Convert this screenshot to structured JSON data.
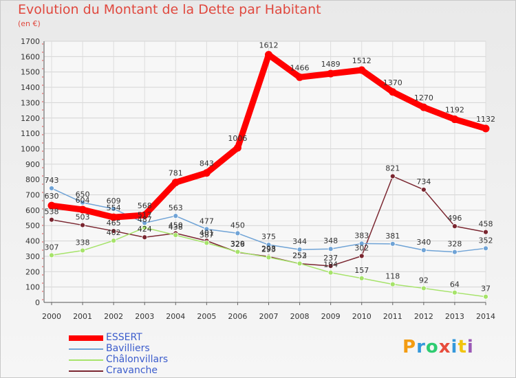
{
  "header": {
    "title": "Evolution du Montant de la Dette par Habitant",
    "subtitle": "(en €)"
  },
  "logo": {
    "text": "Proxiti",
    "colors": [
      "#f39c12",
      "#3498db",
      "#2ecc71",
      "#e74c3c",
      "#3498db",
      "#f1c40f",
      "#9b59b6"
    ]
  },
  "chart_data": {
    "type": "line",
    "title": "Evolution du Montant de la Dette par Habitant",
    "subtitle": "(en €)",
    "xlabel": "",
    "ylabel": "",
    "ylim": [
      0,
      1700
    ],
    "yticks": [
      0,
      100,
      200,
      300,
      400,
      500,
      600,
      700,
      800,
      900,
      1000,
      1100,
      1200,
      1300,
      1400,
      1500,
      1600,
      1700
    ],
    "grid": true,
    "legend_position": "bottom-left",
    "x": [
      "2000",
      "2001",
      "2002",
      "2003",
      "2004",
      "2005",
      "2006",
      "2007",
      "2008",
      "2009",
      "2010",
      "2011",
      "2012",
      "2013",
      "2014"
    ],
    "series": [
      {
        "name": "ESSERT",
        "color": "#ff0000",
        "values": [
          630,
          604,
          554,
          568,
          781,
          843,
          1006,
          1612,
          1466,
          1489,
          1512,
          1370,
          1270,
          1192,
          1132
        ]
      },
      {
        "name": "Bavilliers",
        "color": "#6fa3d6",
        "values": [
          743,
          650,
          609,
          517,
          563,
          477,
          450,
          375,
          344,
          348,
          383,
          381,
          340,
          328,
          352
        ]
      },
      {
        "name": "Châlonvillars",
        "color": "#a6e36a",
        "values": [
          307,
          338,
          402,
          487,
          438,
          387,
          329,
          293,
          253,
          194,
          157,
          118,
          92,
          64,
          37
        ]
      },
      {
        "name": "Cravanche",
        "color": "#7a2630",
        "values": [
          538,
          503,
          465,
          424,
          450,
          401,
          326,
          298,
          252,
          237,
          302,
          821,
          734,
          496,
          458
        ]
      }
    ]
  }
}
